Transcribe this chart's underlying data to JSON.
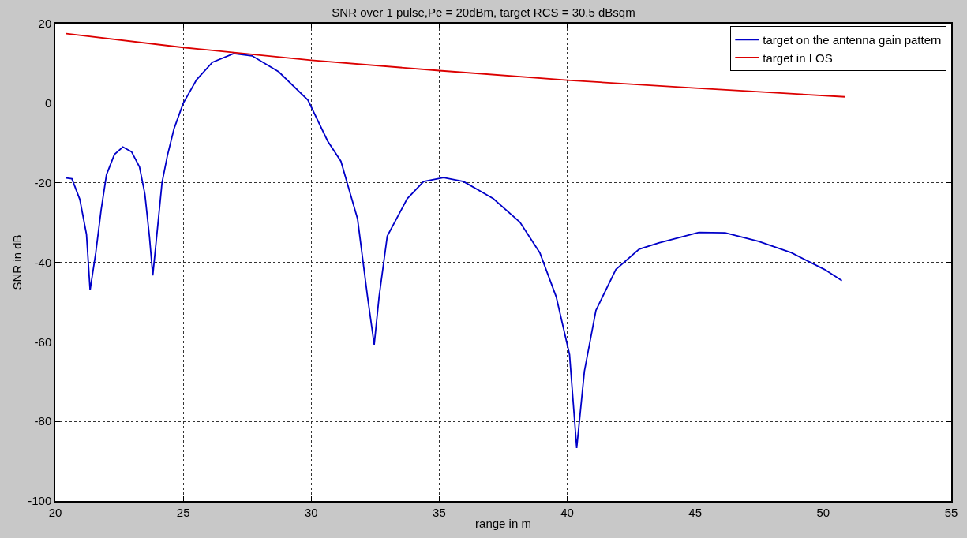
{
  "chart_data": {
    "type": "line",
    "title": "SNR over 1 pulse,Pe = 20dBm, target RCS = 30.5 dBsqm",
    "xlabel": "range in m",
    "ylabel": "SNR in dB",
    "xlim": [
      20,
      55
    ],
    "xticks": [
      20,
      25,
      30,
      35,
      40,
      45,
      50,
      55
    ],
    "ylim": [
      -100,
      20
    ],
    "yticks": [
      -100,
      -80,
      -60,
      -40,
      -20,
      0,
      20
    ],
    "grid": true,
    "legend": "top right",
    "line_style": "solid",
    "marker": "none",
    "series": [
      {
        "name": "target on the antenna gain pattern",
        "color": "#0000c8",
        "x": [
          20.43,
          20.65,
          20.96,
          21.22,
          21.36,
          21.58,
          21.79,
          22.0,
          22.31,
          22.64,
          22.98,
          23.29,
          23.5,
          23.68,
          23.81,
          23.97,
          24.17,
          24.38,
          24.64,
          25.0,
          25.52,
          26.14,
          26.97,
          27.69,
          28.73,
          29.87,
          30.64,
          31.16,
          31.81,
          32.2,
          32.46,
          32.65,
          32.97,
          33.75,
          34.39,
          35.17,
          35.95,
          37.11,
          38.15,
          38.93,
          39.57,
          40.09,
          40.37,
          40.67,
          41.12,
          41.9,
          42.81,
          43.58,
          45.14,
          46.17,
          47.47,
          48.76,
          50.05,
          50.73
        ],
        "values": [
          -18.8,
          -19,
          -24.2,
          -33,
          -47,
          -37.7,
          -26.9,
          -18,
          -12.9,
          -11,
          -12.2,
          -16,
          -22.8,
          -33.6,
          -43.3,
          -33,
          -20,
          -13.2,
          -6.4,
          0,
          5.9,
          10.3,
          12.5,
          11.9,
          7.9,
          0.8,
          -9.5,
          -14.6,
          -29.1,
          -48.7,
          -60.7,
          -48.7,
          -33.4,
          -24,
          -19.7,
          -18.7,
          -19.7,
          -24,
          -29.9,
          -37.6,
          -48.7,
          -63.2,
          -86.7,
          -67.4,
          -52.1,
          -41.8,
          -36.7,
          -35.1,
          -32.5,
          -32.6,
          -34.7,
          -37.6,
          -41.8,
          -44.6
        ]
      },
      {
        "name": "target in LOS",
        "color": "#dc0000",
        "x": [
          20.43,
          25,
          30,
          35,
          40,
          45,
          50.85
        ],
        "values": [
          17.5,
          14.0,
          10.8,
          8.2,
          5.8,
          3.8,
          1.6
        ]
      }
    ]
  }
}
